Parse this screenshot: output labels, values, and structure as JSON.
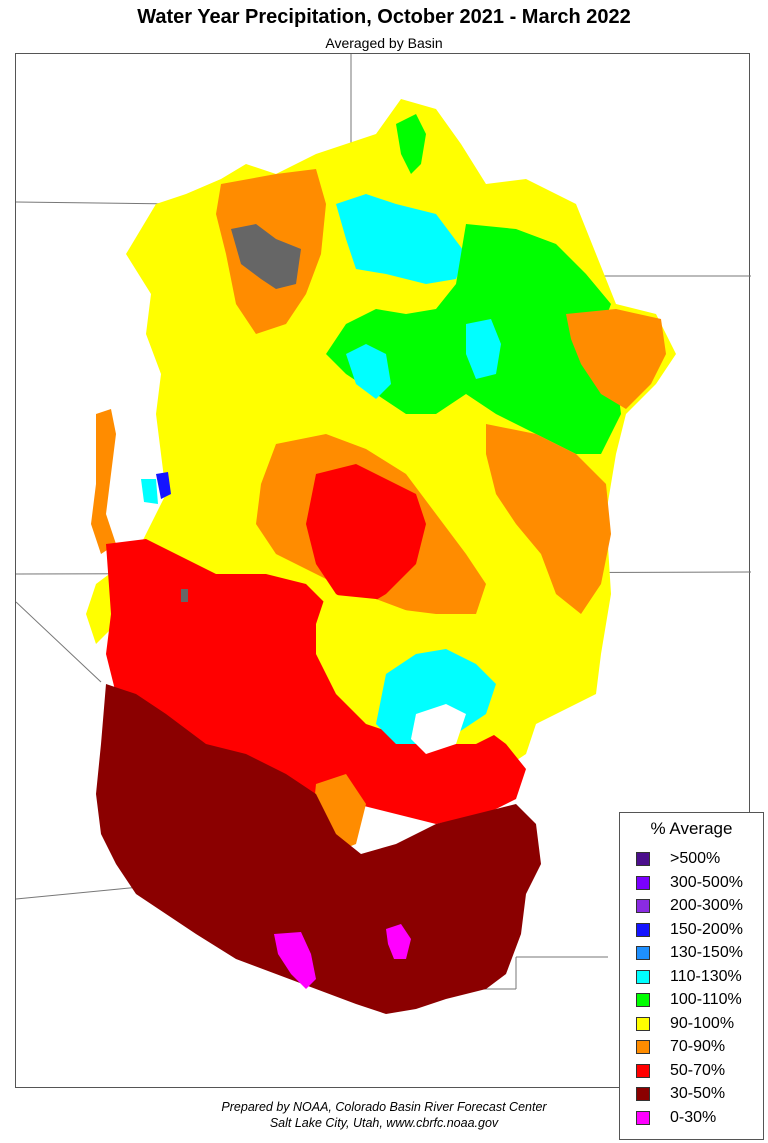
{
  "title": "Water Year Precipitation, October 2021 - March 2022",
  "subtitle": "Averaged by Basin",
  "legend": {
    "title": "% Average",
    "items": [
      {
        "label": ">500%",
        "color": "#4b0e8c"
      },
      {
        "label": "300-500%",
        "color": "#7a00ff"
      },
      {
        "label": "200-300%",
        "color": "#8a2be2"
      },
      {
        "label": "150-200%",
        "color": "#1414ff"
      },
      {
        "label": "130-150%",
        "color": "#1e90ff"
      },
      {
        "label": "110-130%",
        "color": "#00ffff"
      },
      {
        "label": "100-110%",
        "color": "#00ff00"
      },
      {
        "label": "90-100%",
        "color": "#ffff00"
      },
      {
        "label": "70-90%",
        "color": "#ff8c00"
      },
      {
        "label": "50-70%",
        "color": "#ff0000"
      },
      {
        "label": "30-50%",
        "color": "#8b0000"
      },
      {
        "label": "0-30%",
        "color": "#ff00ff"
      }
    ]
  },
  "colors": {
    "no_data": "#666666",
    "water": "#ffffff",
    "state_line": "#777777"
  },
  "footer": {
    "line1": "Prepared by NOAA, Colorado Basin River Forecast Center",
    "line2": "Salt Lake City, Utah, www.cbrfc.noaa.gov"
  }
}
